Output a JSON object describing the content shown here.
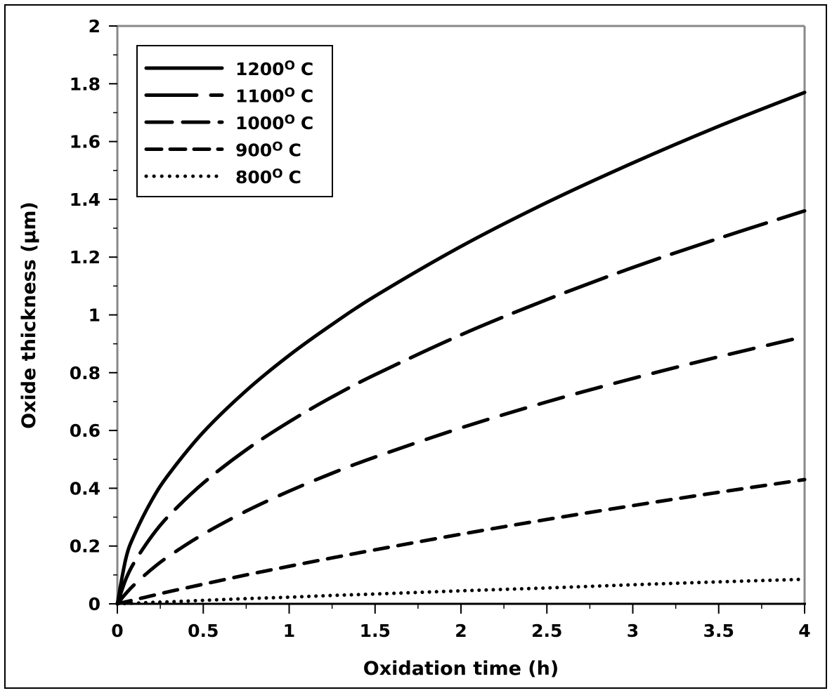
{
  "chart_data": {
    "type": "line",
    "title": "",
    "xlabel": "Oxidation time (h)",
    "ylabel": "Oxide thickness (µm)",
    "xlim": [
      0,
      4
    ],
    "ylim": [
      0,
      2
    ],
    "grid": false,
    "legend_position": "top-left",
    "x_ticks": [
      "0",
      "0.5",
      "1",
      "1.5",
      "2",
      "2.5",
      "3",
      "3.5",
      "4"
    ],
    "y_ticks": [
      "0",
      "0.2",
      "0.4",
      "0.6",
      "0.8",
      "1",
      "1.2",
      "1.4",
      "1.6",
      "1.8",
      "2"
    ],
    "x": [
      0,
      0.05,
      0.1,
      0.2,
      0.3,
      0.5,
      0.75,
      1,
      1.25,
      1.5,
      2,
      2.5,
      3,
      3.5,
      4
    ],
    "series": [
      {
        "name": "1200",
        "label_suffix": "O",
        "unit": "C",
        "style": "solid",
        "color": "#000000",
        "values": [
          0,
          0.158,
          0.24,
          0.358,
          0.449,
          0.594,
          0.738,
          0.86,
          0.967,
          1.065,
          1.237,
          1.389,
          1.526,
          1.653,
          1.77
        ]
      },
      {
        "name": "1100",
        "label_suffix": "O",
        "unit": "C",
        "style": "long-dash",
        "color": "#000000",
        "values": [
          0,
          0.086,
          0.145,
          0.234,
          0.305,
          0.418,
          0.533,
          0.63,
          0.716,
          0.793,
          0.931,
          1.053,
          1.164,
          1.265,
          1.36
        ]
      },
      {
        "name": "1000",
        "label_suffix": "O",
        "unit": "C",
        "style": "medium-dash",
        "color": "#000000",
        "values": [
          0,
          0.036,
          0.067,
          0.12,
          0.165,
          0.241,
          0.321,
          0.39,
          0.452,
          0.508,
          0.609,
          0.699,
          0.78,
          0.855,
          0.925
        ]
      },
      {
        "name": "900",
        "label_suffix": "O",
        "unit": "C",
        "style": "short-dash",
        "color": "#000000",
        "values": [
          0,
          0.007,
          0.014,
          0.028,
          0.042,
          0.068,
          0.1,
          0.13,
          0.159,
          0.187,
          0.241,
          0.292,
          0.34,
          0.386,
          0.43
        ]
      },
      {
        "name": "800",
        "label_suffix": "O",
        "unit": "C",
        "style": "dotted",
        "color": "#000000",
        "values": [
          0,
          0.001,
          0.002,
          0.005,
          0.007,
          0.012,
          0.018,
          0.023,
          0.029,
          0.034,
          0.045,
          0.055,
          0.066,
          0.076,
          0.085
        ]
      }
    ]
  }
}
